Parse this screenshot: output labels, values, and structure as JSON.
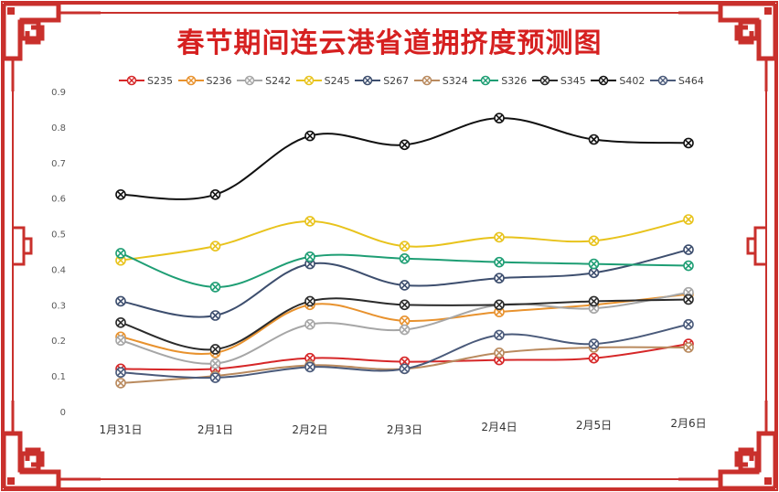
{
  "title": "春节期间连云港省道拥挤度预测图",
  "chart_data": {
    "type": "line",
    "title": "春节期间连云港省道拥挤度预测图",
    "categories": [
      "1月31日",
      "2月1日",
      "2月2日",
      "2月3日",
      "2月4日",
      "2月5日",
      "2月6日"
    ],
    "y_ticks": [
      "0",
      "0.1",
      "0.2",
      "0.3",
      "0.4",
      "0.5",
      "0.6",
      "0.7",
      "0.8",
      "0.9"
    ],
    "ylim": [
      0,
      0.9
    ],
    "legend_position": "top",
    "grid": false,
    "series": [
      {
        "name": "S235",
        "color": "#d62728",
        "values": [
          0.12,
          0.12,
          0.15,
          0.14,
          0.145,
          0.15,
          0.19
        ]
      },
      {
        "name": "S236",
        "color": "#e8922e",
        "values": [
          0.21,
          0.165,
          0.3,
          0.255,
          0.28,
          0.3,
          0.33
        ]
      },
      {
        "name": "S242",
        "color": "#a6a6a6",
        "values": [
          0.2,
          0.135,
          0.245,
          0.23,
          0.3,
          0.29,
          0.335
        ]
      },
      {
        "name": "S245",
        "color": "#e8c31c",
        "values": [
          0.425,
          0.465,
          0.535,
          0.465,
          0.49,
          0.48,
          0.54
        ]
      },
      {
        "name": "S267",
        "color": "#3d4e6e",
        "values": [
          0.31,
          0.27,
          0.415,
          0.355,
          0.375,
          0.39,
          0.455
        ]
      },
      {
        "name": "S324",
        "color": "#b98a5e",
        "values": [
          0.08,
          0.1,
          0.13,
          0.12,
          0.165,
          0.18,
          0.18
        ]
      },
      {
        "name": "S326",
        "color": "#1e9e74",
        "values": [
          0.445,
          0.35,
          0.435,
          0.43,
          0.42,
          0.415,
          0.41
        ]
      },
      {
        "name": "S345",
        "color": "#2b2b2b",
        "values": [
          0.25,
          0.175,
          0.31,
          0.3,
          0.3,
          0.31,
          0.315
        ]
      },
      {
        "name": "S402",
        "color": "#111111",
        "values": [
          0.61,
          0.61,
          0.775,
          0.75,
          0.825,
          0.765,
          0.755
        ]
      },
      {
        "name": "S464",
        "color": "#4a5a7a",
        "values": [
          0.11,
          0.095,
          0.125,
          0.12,
          0.215,
          0.19,
          0.245
        ]
      }
    ]
  }
}
